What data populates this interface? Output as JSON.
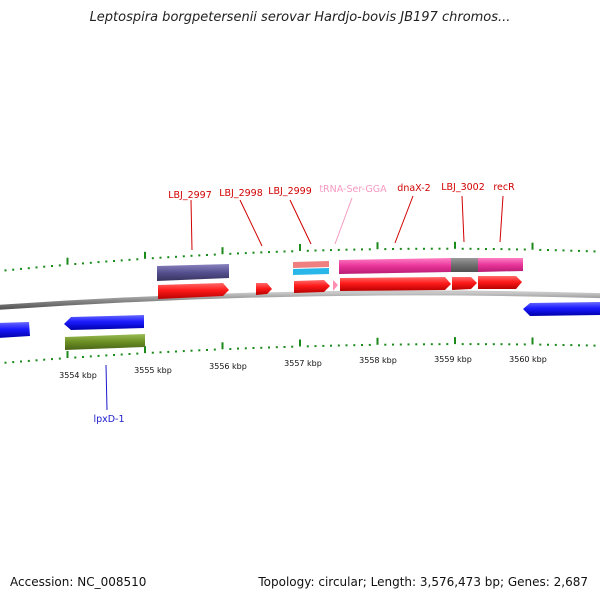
{
  "title": "Leptospira borgpetersenii serovar Hardjo-bovis JB197 chromos...",
  "footer": {
    "accession": "Accession: NC_008510",
    "summary": "Topology: circular; Length: 3,576,473 bp; Genes: 2,687"
  },
  "colors": {
    "cds": "#ff0000",
    "cds_label": "#d10000",
    "trna_label": "#f49ac1",
    "trna_feature": "#ff8fb0",
    "minus_strand": "#1a1aff",
    "backbone": "#8a8a8a",
    "ticks": "#1a8a1a",
    "magenta": "#e8349a",
    "purple": "#55508f",
    "salmon": "#f08080",
    "cyan": "#29b6e8",
    "olive": "#6b8e23",
    "grey": "#707070",
    "lpxd_label": "#1a1acc"
  },
  "gene_labels": [
    "LBJ_2997",
    "LBJ_2998",
    "LBJ_2999",
    "tRNA-Ser-GGA",
    "dnaX-2",
    "LBJ_3002",
    "recR"
  ],
  "bottom_labels": [
    "lpxD-1"
  ],
  "axis_labels": [
    "3554 kbp",
    "3555 kbp",
    "3556 kbp",
    "3557 kbp",
    "3558 kbp",
    "3559 kbp",
    "3560 kbp"
  ]
}
